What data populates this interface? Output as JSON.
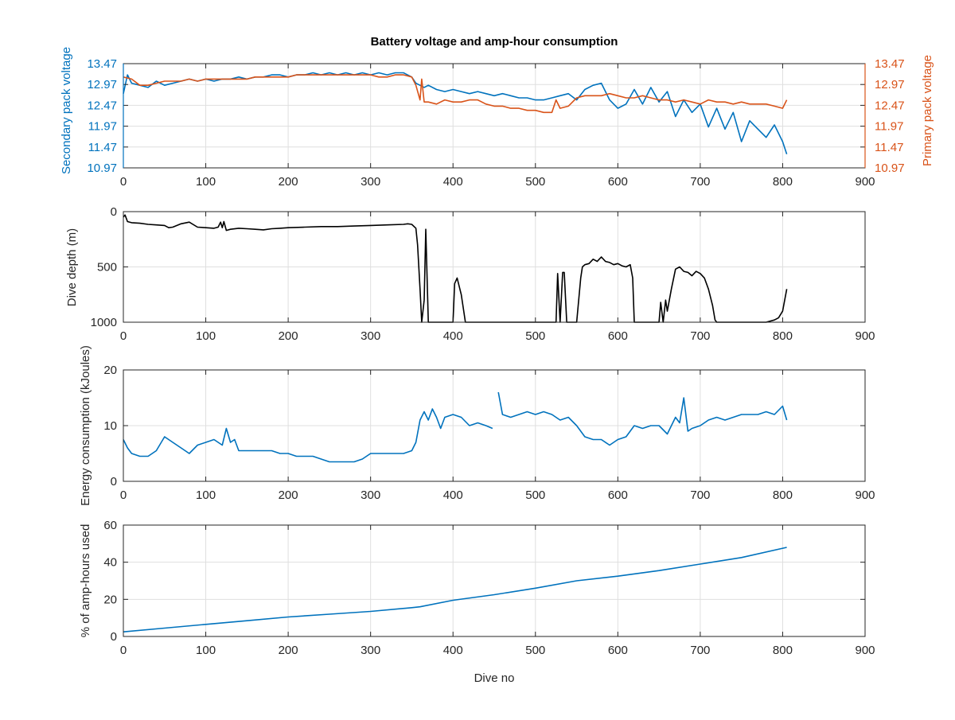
{
  "chart_data": [
    {
      "type": "line",
      "title": "Battery voltage and amp-hour consumption",
      "xlabel": "",
      "ylabel_left": "Secondary pack voltage",
      "ylabel_right": "Primary pack voltage",
      "xlim": [
        0,
        900
      ],
      "ylim": [
        10.97,
        13.47
      ],
      "xticks": [
        0,
        100,
        200,
        300,
        400,
        500,
        600,
        700,
        800,
        900
      ],
      "yticks": [
        10.97,
        11.47,
        11.97,
        12.47,
        12.97,
        13.47
      ],
      "ytick_labels": [
        "10.97",
        "11.47",
        "11.97",
        "12.47",
        "12.97",
        "13.47"
      ],
      "grid": true,
      "colors": {
        "left_axis": "#0072BD",
        "right_axis": "#D95319"
      },
      "series": [
        {
          "color": "#0072BD",
          "axis": "left",
          "x": [
            0,
            5,
            10,
            20,
            30,
            40,
            50,
            60,
            70,
            80,
            90,
            100,
            110,
            120,
            130,
            140,
            150,
            160,
            170,
            180,
            190,
            200,
            210,
            220,
            230,
            240,
            250,
            260,
            270,
            280,
            290,
            300,
            310,
            320,
            330,
            340,
            350,
            355,
            360,
            365,
            370,
            380,
            390,
            400,
            410,
            420,
            430,
            440,
            450,
            460,
            470,
            480,
            490,
            500,
            510,
            520,
            530,
            540,
            550,
            560,
            570,
            580,
            590,
            600,
            610,
            620,
            630,
            640,
            650,
            660,
            670,
            680,
            690,
            700,
            710,
            720,
            730,
            740,
            750,
            760,
            770,
            780,
            790,
            800,
            805
          ],
          "y": [
            12.75,
            13.2,
            13.0,
            12.95,
            12.9,
            13.05,
            12.95,
            13.0,
            13.05,
            13.1,
            13.05,
            13.1,
            13.05,
            13.1,
            13.1,
            13.15,
            13.1,
            13.15,
            13.15,
            13.2,
            13.2,
            13.15,
            13.2,
            13.2,
            13.25,
            13.2,
            13.25,
            13.2,
            13.25,
            13.2,
            13.25,
            13.2,
            13.25,
            13.2,
            13.25,
            13.25,
            13.15,
            13.0,
            12.95,
            12.9,
            12.95,
            12.85,
            12.8,
            12.85,
            12.8,
            12.75,
            12.8,
            12.75,
            12.7,
            12.75,
            12.7,
            12.65,
            12.65,
            12.6,
            12.6,
            12.65,
            12.7,
            12.75,
            12.6,
            12.85,
            12.95,
            13.0,
            12.6,
            12.4,
            12.5,
            12.85,
            12.5,
            12.9,
            12.55,
            12.8,
            12.2,
            12.6,
            12.3,
            12.5,
            11.95,
            12.4,
            11.9,
            12.3,
            11.6,
            12.1,
            11.9,
            11.7,
            12.0,
            11.6,
            11.3
          ]
        },
        {
          "color": "#D95319",
          "axis": "right",
          "x": [
            0,
            10,
            20,
            30,
            40,
            50,
            60,
            70,
            80,
            90,
            100,
            110,
            120,
            130,
            140,
            150,
            160,
            170,
            180,
            190,
            200,
            210,
            220,
            230,
            240,
            250,
            260,
            270,
            280,
            290,
            300,
            310,
            320,
            330,
            340,
            350,
            355,
            360,
            362,
            365,
            370,
            380,
            390,
            400,
            410,
            420,
            430,
            440,
            450,
            460,
            470,
            480,
            490,
            500,
            510,
            520,
            525,
            530,
            540,
            550,
            560,
            570,
            580,
            590,
            600,
            610,
            620,
            630,
            640,
            650,
            660,
            670,
            680,
            690,
            700,
            710,
            720,
            730,
            740,
            750,
            760,
            770,
            780,
            790,
            800,
            805
          ],
          "y": [
            13.15,
            13.1,
            12.95,
            12.95,
            13.0,
            13.05,
            13.05,
            13.05,
            13.1,
            13.05,
            13.1,
            13.1,
            13.1,
            13.1,
            13.1,
            13.1,
            13.15,
            13.15,
            13.15,
            13.15,
            13.15,
            13.2,
            13.2,
            13.2,
            13.2,
            13.2,
            13.2,
            13.2,
            13.2,
            13.2,
            13.2,
            13.15,
            13.15,
            13.2,
            13.2,
            13.15,
            12.95,
            12.6,
            13.1,
            12.55,
            12.55,
            12.5,
            12.6,
            12.55,
            12.55,
            12.6,
            12.6,
            12.5,
            12.45,
            12.45,
            12.4,
            12.4,
            12.35,
            12.35,
            12.3,
            12.3,
            12.6,
            12.4,
            12.45,
            12.65,
            12.7,
            12.7,
            12.7,
            12.75,
            12.7,
            12.65,
            12.65,
            12.7,
            12.65,
            12.6,
            12.6,
            12.55,
            12.6,
            12.55,
            12.5,
            12.6,
            12.55,
            12.55,
            12.5,
            12.55,
            12.5,
            12.5,
            12.5,
            12.45,
            12.4,
            12.6
          ]
        }
      ]
    },
    {
      "type": "line",
      "title": "",
      "xlabel": "",
      "ylabel": "Dive depth (m)",
      "xlim": [
        0,
        900
      ],
      "ylim": [
        0,
        1000
      ],
      "y_reversed": true,
      "xticks": [
        0,
        100,
        200,
        300,
        400,
        500,
        600,
        700,
        800,
        900
      ],
      "yticks": [
        0,
        500,
        1000
      ],
      "ytick_labels": [
        "0",
        "500",
        "1000"
      ],
      "grid": true,
      "series": [
        {
          "color": "#000000",
          "x": [
            0,
            2,
            5,
            10,
            20,
            30,
            40,
            50,
            55,
            60,
            70,
            80,
            90,
            100,
            110,
            115,
            118,
            120,
            122,
            125,
            130,
            140,
            150,
            160,
            170,
            180,
            190,
            200,
            220,
            240,
            260,
            280,
            300,
            320,
            340,
            345,
            350,
            355,
            357,
            360,
            362,
            365,
            367,
            370,
            372,
            400,
            402,
            405,
            410,
            415,
            418,
            450,
            500,
            525,
            527,
            530,
            533,
            535,
            538,
            545,
            550,
            555,
            557,
            560,
            565,
            570,
            575,
            580,
            585,
            590,
            595,
            600,
            605,
            610,
            615,
            618,
            620,
            622,
            650,
            652,
            655,
            658,
            660,
            665,
            670,
            675,
            680,
            685,
            690,
            695,
            700,
            705,
            710,
            715,
            718,
            720,
            750,
            780,
            790,
            795,
            800,
            805
          ],
          "y": [
            50,
            30,
            90,
            100,
            105,
            115,
            120,
            125,
            145,
            140,
            110,
            95,
            140,
            145,
            150,
            140,
            95,
            145,
            90,
            170,
            160,
            150,
            155,
            160,
            165,
            155,
            150,
            145,
            140,
            135,
            135,
            130,
            125,
            120,
            115,
            110,
            115,
            150,
            300,
            700,
            1000,
            800,
            160,
            1000,
            1000,
            1000,
            650,
            600,
            750,
            1000,
            1000,
            1000,
            1000,
            1000,
            560,
            1000,
            550,
            550,
            1000,
            1000,
            1000,
            600,
            500,
            480,
            470,
            430,
            450,
            410,
            450,
            460,
            480,
            470,
            490,
            500,
            480,
            600,
            1000,
            1000,
            1000,
            820,
            1000,
            800,
            900,
            700,
            520,
            500,
            540,
            550,
            580,
            540,
            560,
            600,
            700,
            850,
            980,
            1000,
            1000,
            1000,
            980,
            960,
            900,
            700
          ]
        }
      ]
    },
    {
      "type": "line",
      "title": "",
      "xlabel": "",
      "ylabel": "Energy consumption (kJoules)",
      "xlim": [
        0,
        900
      ],
      "ylim": [
        0,
        20
      ],
      "xticks": [
        0,
        100,
        200,
        300,
        400,
        500,
        600,
        700,
        800,
        900
      ],
      "yticks": [
        0,
        10,
        20
      ],
      "ytick_labels": [
        "0",
        "10",
        "20"
      ],
      "grid": true,
      "series": [
        {
          "color": "#0072BD",
          "x": [
            0,
            5,
            10,
            20,
            30,
            40,
            50,
            60,
            70,
            80,
            90,
            100,
            110,
            120,
            125,
            130,
            135,
            140,
            150,
            160,
            170,
            180,
            190,
            200,
            210,
            220,
            230,
            240,
            250,
            260,
            270,
            280,
            290,
            300,
            310,
            320,
            330,
            340,
            350,
            355,
            360,
            365,
            370,
            375,
            380,
            385,
            390,
            400,
            410,
            420,
            430,
            440,
            448,
            450,
            455,
            460,
            470,
            480,
            490,
            500,
            510,
            520,
            530,
            540,
            550,
            560,
            570,
            580,
            590,
            600,
            610,
            620,
            630,
            640,
            650,
            660,
            670,
            675,
            680,
            685,
            690,
            700,
            710,
            720,
            730,
            740,
            750,
            760,
            770,
            780,
            790,
            800,
            805
          ],
          "y": [
            7.5,
            6.0,
            5.0,
            4.5,
            4.5,
            5.5,
            8.0,
            7.0,
            6.0,
            5.0,
            6.5,
            7.0,
            7.5,
            6.5,
            9.5,
            7.0,
            7.5,
            5.5,
            5.5,
            5.5,
            5.5,
            5.5,
            5.0,
            5.0,
            4.5,
            4.5,
            4.5,
            4.0,
            3.5,
            3.5,
            3.5,
            3.5,
            4.0,
            5.0,
            5.0,
            5.0,
            5.0,
            5.0,
            5.5,
            7.0,
            11.0,
            12.5,
            11.0,
            13.0,
            11.5,
            9.5,
            11.5,
            12.0,
            11.5,
            10.0,
            10.5,
            10.0,
            9.5,
            null,
            16.0,
            12.0,
            11.5,
            12.0,
            12.5,
            12.0,
            12.5,
            12.0,
            11.0,
            11.5,
            10.0,
            8.0,
            7.5,
            7.5,
            6.5,
            7.5,
            8.0,
            10.0,
            9.5,
            10.0,
            10.0,
            8.5,
            11.5,
            10.5,
            15.0,
            9.0,
            9.5,
            10.0,
            11.0,
            11.5,
            11.0,
            11.5,
            12.0,
            12.0,
            12.0,
            12.5,
            12.0,
            13.5,
            11.0
          ]
        }
      ]
    },
    {
      "type": "line",
      "title": "",
      "xlabel": "Dive no",
      "ylabel": "% of amp-hours used",
      "xlim": [
        0,
        900
      ],
      "ylim": [
        0,
        60
      ],
      "xticks": [
        0,
        100,
        200,
        300,
        400,
        500,
        600,
        700,
        800,
        900
      ],
      "yticks": [
        0,
        20,
        40,
        60
      ],
      "ytick_labels": [
        "0",
        "20",
        "40",
        "60"
      ],
      "grid": true,
      "series": [
        {
          "color": "#0072BD",
          "x": [
            0,
            50,
            100,
            150,
            200,
            250,
            300,
            350,
            360,
            400,
            450,
            500,
            550,
            600,
            650,
            700,
            750,
            805
          ],
          "y": [
            2.5,
            4.5,
            6.5,
            8.5,
            10.5,
            12.0,
            13.5,
            15.5,
            16.0,
            19.5,
            22.5,
            26.0,
            30.0,
            32.5,
            35.5,
            39.0,
            42.5,
            48.0
          ]
        }
      ]
    }
  ]
}
